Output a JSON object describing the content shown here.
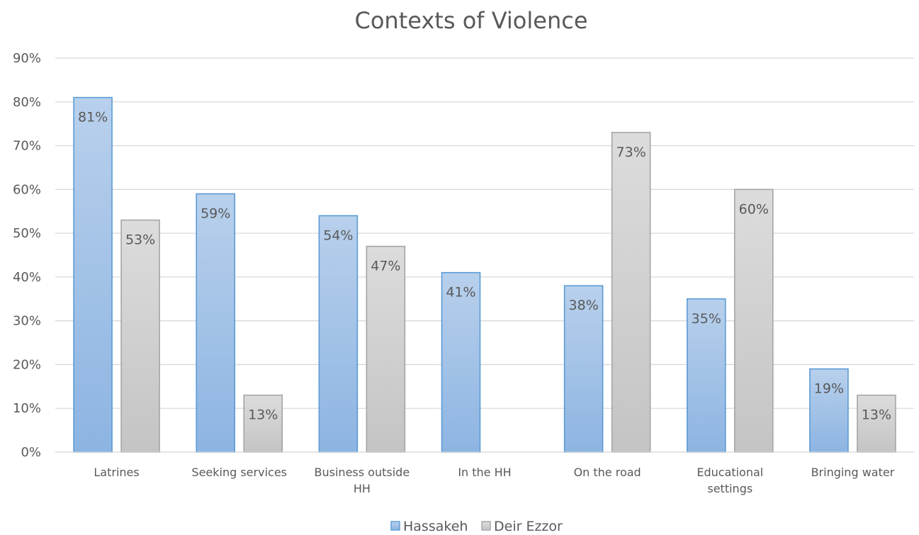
{
  "chart_data": {
    "type": "bar",
    "title": "Contexts of Violence",
    "xlabel": "",
    "ylabel": "",
    "ylim": [
      0,
      90
    ],
    "y_ticks": [
      "0%",
      "10%",
      "20%",
      "30%",
      "40%",
      "50%",
      "60%",
      "70%",
      "80%",
      "90%"
    ],
    "grid": true,
    "legend_position": "bottom",
    "categories": [
      [
        "Latrines"
      ],
      [
        "Seeking services"
      ],
      [
        "Business outside",
        "HH"
      ],
      [
        "In the HH"
      ],
      [
        "On the road"
      ],
      [
        "Educational",
        "settings"
      ],
      [
        "Bringing water"
      ]
    ],
    "series": [
      {
        "name": "Hassakeh",
        "color": "#5b9bd5",
        "values": [
          81,
          59,
          54,
          41,
          38,
          35,
          19
        ],
        "labels": [
          "81%",
          "59%",
          "54%",
          "41%",
          "38%",
          "35%",
          "19%"
        ]
      },
      {
        "name": "Deir Ezzor",
        "color": "#a5a5a5",
        "values": [
          53,
          13,
          47,
          null,
          73,
          60,
          13
        ],
        "labels": [
          "53%",
          "13%",
          "47%",
          "",
          "73%",
          "60%",
          "13%"
        ]
      }
    ]
  }
}
